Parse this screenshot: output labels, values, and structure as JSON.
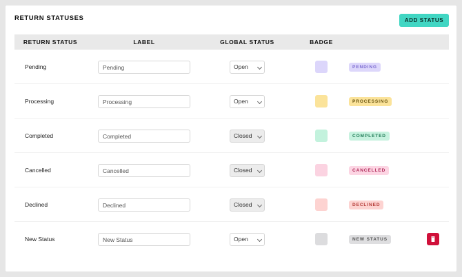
{
  "header": {
    "title": "RETURN STATUSES",
    "add_button_label": "ADD STATUS"
  },
  "table": {
    "columns": [
      "RETURN STATUS",
      "LABEL",
      "GLOBAL STATUS",
      "BADGE"
    ],
    "rows": [
      {
        "status": "Pending",
        "label": "Pending",
        "global_status": "Open",
        "badge_text": "PENDING",
        "swatch_color": "#dcd6fb",
        "badge_bg": "#ddd7fb",
        "badge_fg": "#7c6bd0"
      },
      {
        "status": "Processing",
        "label": "Processing",
        "global_status": "Open",
        "badge_text": "PROCESSING",
        "swatch_color": "#fbe39a",
        "badge_bg": "#fbe39a",
        "badge_fg": "#6a5410"
      },
      {
        "status": "Completed",
        "label": "Completed",
        "global_status": "Closed",
        "badge_text": "COMPLETED",
        "swatch_color": "#c3f2dd",
        "badge_bg": "#c7f2df",
        "badge_fg": "#1f7a55"
      },
      {
        "status": "Cancelled",
        "label": "Cancelled",
        "global_status": "Closed",
        "badge_text": "CANCELLED",
        "swatch_color": "#fbd3e1",
        "badge_bg": "#fcd5e3",
        "badge_fg": "#b02a5a"
      },
      {
        "status": "Declined",
        "label": "Declined",
        "global_status": "Closed",
        "badge_text": "DECLINED",
        "swatch_color": "#fdd3d1",
        "badge_bg": "#fdd3d1",
        "badge_fg": "#b33a36"
      },
      {
        "status": "New Status",
        "label": "New Status",
        "global_status": "Open",
        "badge_text": "NEW STATUS",
        "swatch_color": "#dcdcde",
        "badge_bg": "#dedee0",
        "badge_fg": "#555555",
        "deletable": true
      }
    ]
  },
  "colors": {
    "accent": "#41d6c3",
    "delete": "#d0103a"
  },
  "icons": {
    "delete": "trash-icon",
    "select": "chevron-down-icon"
  }
}
